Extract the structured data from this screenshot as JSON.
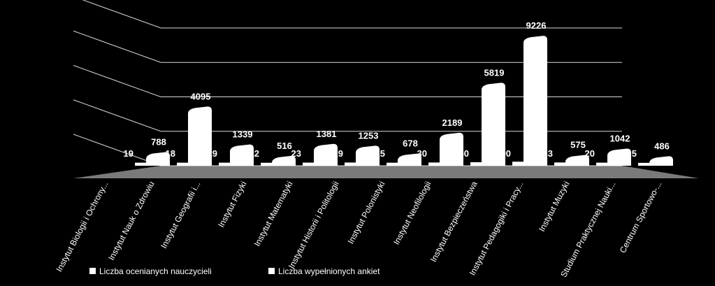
{
  "chart_data": {
    "type": "bar3d",
    "categories": [
      "Instytut Biologii i Ochrony...",
      "Instytut Nauk o Zdrowiu",
      "Instytut Geografii i...",
      "Instytut Fizyki",
      "Instytut Matematyki",
      "Instytut Historii i Politologii",
      "Instytut Polonistyki",
      "Instytut Neofilologii",
      "Instytut Bezpieczeństwa",
      "Instytut Pedagogiki i Pracy...",
      "Instytut Muzyki",
      "Studium Praktycznej Nauki...",
      "Centrum Sportowo-..."
    ],
    "series": [
      {
        "name": "Liczba ocenianych nauczycieli",
        "color": "#ffffff",
        "values": [
          19,
          18,
          19,
          12,
          23,
          29,
          15,
          30,
          50,
          90,
          33,
          20,
          5
        ]
      },
      {
        "name": "Liczba wypełnionych ankiet",
        "color": "#ffffff",
        "values": [
          788,
          4095,
          1339,
          516,
          1381,
          1253,
          678,
          2189,
          5819,
          9226,
          575,
          1042,
          486
        ]
      }
    ],
    "ylim": [
      0,
      10000
    ],
    "yticks": [
      0,
      2500,
      5000,
      7500,
      10000
    ],
    "grid": true,
    "legend": "bottom"
  }
}
